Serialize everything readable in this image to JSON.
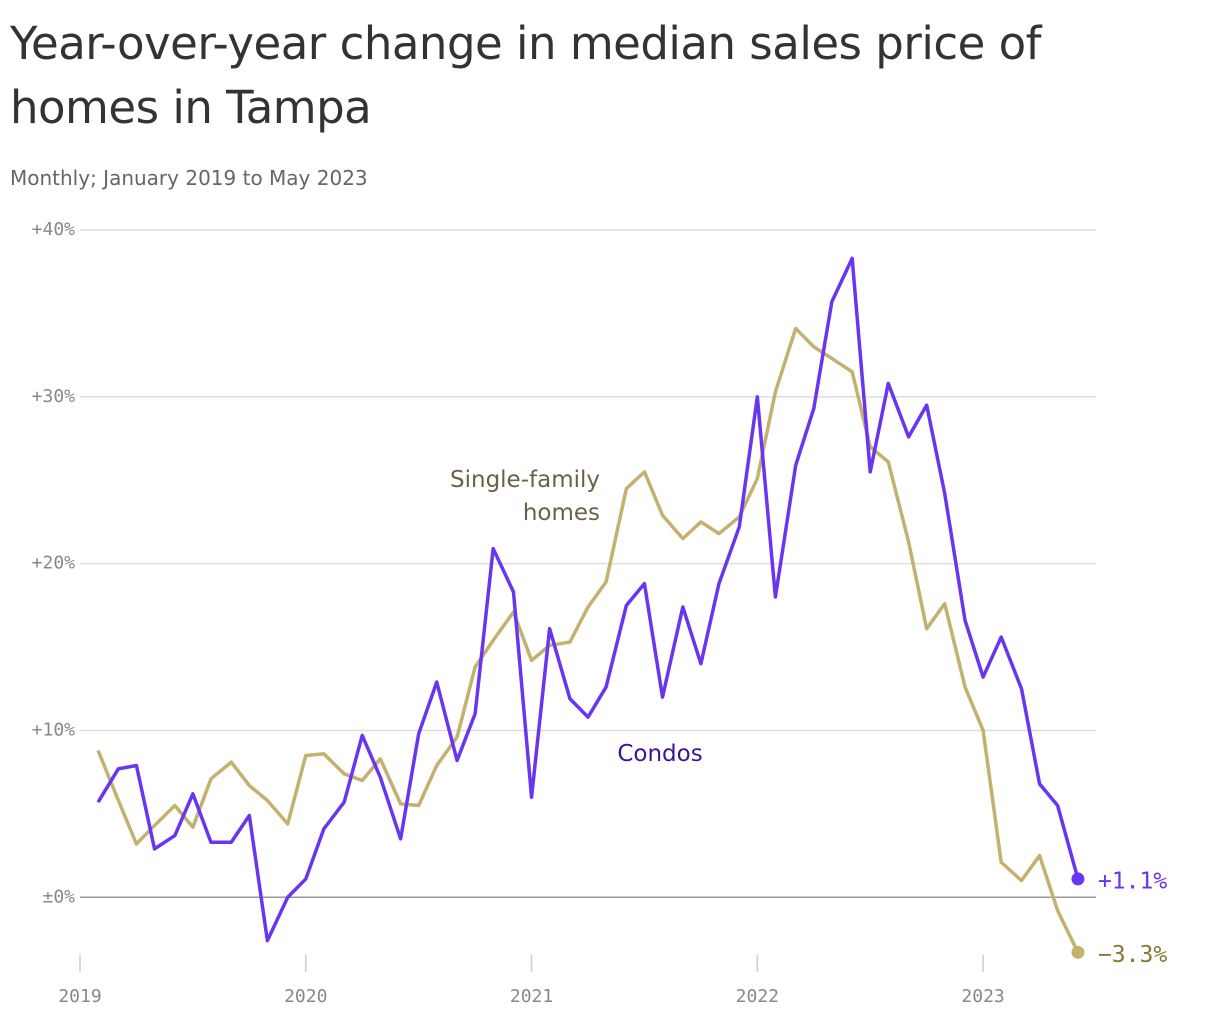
{
  "chart_data": {
    "type": "line",
    "title": "Year-over-year change in median sales price of homes in Tampa",
    "subtitle": "Monthly; January 2019 to May 2023",
    "x": [
      2019.08,
      2019.17,
      2019.25,
      2019.33,
      2019.42,
      2019.5,
      2019.58,
      2019.67,
      2019.75,
      2019.83,
      2019.92,
      2020,
      2020.08,
      2020.17,
      2020.25,
      2020.33,
      2020.42,
      2020.5,
      2020.58,
      2020.67,
      2020.75,
      2020.83,
      2020.92,
      2021,
      2021.08,
      2021.17,
      2021.25,
      2021.33,
      2021.42,
      2021.5,
      2021.58,
      2021.67,
      2021.75,
      2021.83,
      2021.92,
      2022,
      2022.08,
      2022.17,
      2022.25,
      2022.33,
      2022.42,
      2022.5,
      2022.58,
      2022.67,
      2022.75,
      2022.83,
      2022.92,
      2023,
      2023.08,
      2023.17,
      2023.25,
      2023.33,
      2023.42
    ],
    "series": [
      {
        "name": "Single-family homes",
        "color": "#c4b06f",
        "label_color": "#6b6147",
        "end_label_color": "#8a7733",
        "values": [
          8.8,
          5.8,
          3.2,
          4.3,
          5.5,
          4.2,
          7.1,
          8.1,
          6.7,
          5.8,
          4.4,
          8.5,
          8.6,
          7.4,
          7.0,
          8.3,
          5.6,
          5.5,
          7.9,
          9.6,
          13.8,
          15.4,
          17.1,
          14.2,
          15.1,
          15.3,
          17.4,
          18.9,
          24.5,
          25.5,
          22.9,
          21.5,
          22.5,
          21.8,
          22.8,
          25.1,
          30.3,
          34.1,
          33.0,
          32.3,
          31.5,
          27.0,
          26.1,
          21.3,
          16.1,
          17.6,
          12.6,
          10.0,
          2.1,
          1.0,
          2.5,
          -0.8,
          -3.3
        ],
        "value_labels": [
          null,
          null,
          null,
          null,
          null,
          null,
          null,
          null,
          null,
          null,
          null,
          null,
          null,
          null,
          null,
          null,
          null,
          null,
          null,
          null,
          null,
          null,
          null,
          null,
          null,
          null,
          null,
          null,
          null,
          null,
          null,
          null,
          null,
          null,
          null,
          null,
          null,
          null,
          null,
          null,
          null,
          null,
          null,
          null,
          null,
          null,
          null,
          null,
          null,
          null,
          null,
          null,
          "−3.3%"
        ]
      },
      {
        "name": "Condos",
        "color": "#6a35f0",
        "label_color": "#3b1399",
        "end_label_color": "#6a35f0",
        "values": [
          5.7,
          7.7,
          7.9,
          2.9,
          3.7,
          6.2,
          3.3,
          3.3,
          4.9,
          -2.6,
          0.0,
          1.1,
          4.1,
          5.7,
          9.7,
          7.2,
          3.5,
          9.8,
          12.9,
          8.2,
          11.0,
          20.9,
          18.3,
          6.0,
          16.1,
          11.9,
          10.8,
          12.6,
          17.5,
          18.8,
          12.0,
          17.4,
          14.0,
          18.8,
          22.2,
          30.0,
          18.0,
          25.9,
          29.3,
          35.7,
          38.3,
          25.5,
          30.8,
          27.6,
          29.5,
          24.2,
          16.6,
          13.2,
          15.6,
          12.5,
          6.8,
          5.5,
          1.1
        ],
        "value_labels": [
          null,
          null,
          null,
          null,
          null,
          null,
          null,
          null,
          null,
          null,
          null,
          null,
          null,
          null,
          null,
          null,
          null,
          null,
          null,
          null,
          null,
          null,
          null,
          null,
          null,
          null,
          null,
          null,
          null,
          null,
          null,
          null,
          null,
          null,
          null,
          null,
          null,
          null,
          null,
          null,
          null,
          null,
          null,
          null,
          null,
          null,
          null,
          null,
          null,
          null,
          null,
          null,
          "+1.1%"
        ]
      }
    ],
    "xlim": [
      2019,
      2023.5
    ],
    "xticks": [
      2019,
      2020,
      2021,
      2022,
      2023
    ],
    "ylim": [
      -4,
      40
    ],
    "yticks": [
      {
        "value": 0,
        "label": "±0%"
      },
      {
        "value": 10,
        "label": "+10%"
      },
      {
        "value": 20,
        "label": "+20%"
      },
      {
        "value": 30,
        "label": "+30%"
      },
      {
        "value": 40,
        "label": "+40%"
      }
    ],
    "grid": true
  }
}
